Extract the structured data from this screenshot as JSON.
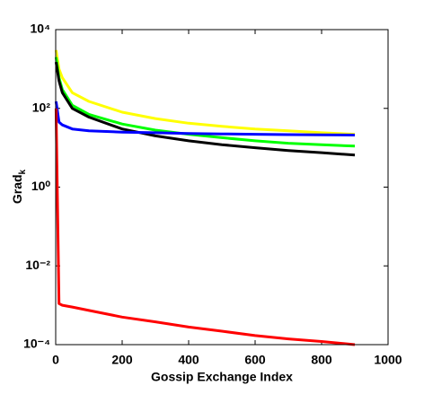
{
  "chart_data": {
    "type": "line",
    "log_y": true,
    "ylabel": "Grad",
    "ylabel_sub": "k",
    "xlabel": "Gossip Exchange Index",
    "x": [
      1,
      10,
      20,
      50,
      100,
      200,
      300,
      400,
      500,
      600,
      700,
      800,
      900
    ],
    "series": [
      {
        "color": "#ffff00",
        "values": [
          3000,
          1000,
          600,
          250,
          150,
          80,
          55,
          42,
          35,
          30,
          27,
          24,
          22
        ]
      },
      {
        "color": "#00ff00",
        "values": [
          2000,
          600,
          300,
          120,
          70,
          40,
          28,
          22,
          18,
          15,
          13,
          12,
          11
        ]
      },
      {
        "color": "#000000",
        "values": [
          1500,
          500,
          250,
          100,
          60,
          30,
          20,
          15,
          12,
          10,
          8.5,
          7.5,
          6.5
        ]
      },
      {
        "color": "#0000ff",
        "values": [
          150,
          45,
          38,
          30,
          27,
          25,
          24,
          23,
          22.5,
          22,
          21.5,
          21.2,
          21
        ]
      },
      {
        "color": "#ff0000",
        "values": [
          100,
          0.0011,
          0.001,
          0.0009,
          0.00074,
          0.0005,
          0.00038,
          0.00028,
          0.00022,
          0.00017,
          0.00014,
          0.00012,
          0.0001
        ]
      }
    ],
    "xlim": [
      0,
      1000
    ],
    "xticks": [
      0,
      200,
      400,
      600,
      800,
      1000
    ],
    "ylim": [
      0.0001,
      10000
    ],
    "yticks": [
      {
        "value": 0.0001,
        "label": "10⁻⁴"
      },
      {
        "value": 0.01,
        "label": "10⁻²"
      },
      {
        "value": 1,
        "label": "10⁰"
      },
      {
        "value": 100,
        "label": "10²"
      },
      {
        "value": 10000,
        "label": "10⁴"
      }
    ]
  }
}
